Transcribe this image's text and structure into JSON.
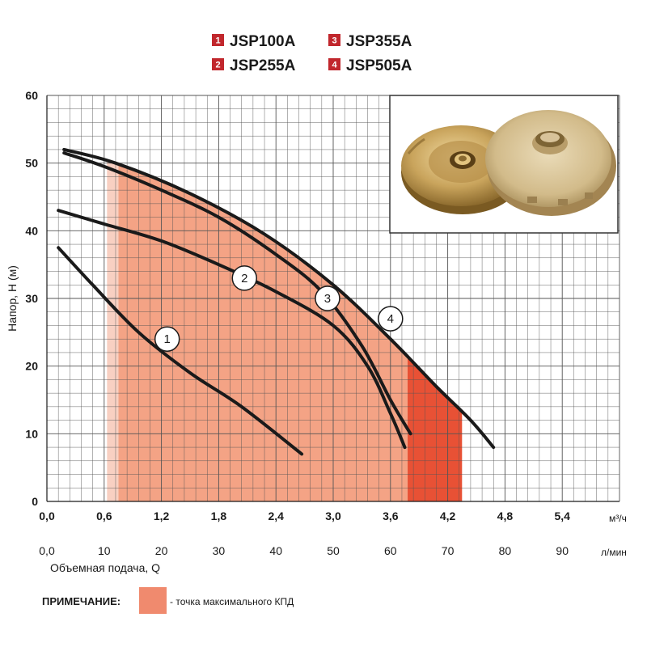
{
  "legend": [
    {
      "num": "1",
      "label": "JSP100A"
    },
    {
      "num": "2",
      "label": "JSP255A"
    },
    {
      "num": "3",
      "label": "JSP355A"
    },
    {
      "num": "4",
      "label": "JSP505A"
    }
  ],
  "colors": {
    "badge": "#c1272d",
    "curve": "#1a1a1a",
    "grid": "#555555",
    "note_swatch": "#f08a6e"
  },
  "chart_data": {
    "type": "line",
    "ylabel": "Напор, H (м)",
    "xlabel": "Объемная подача, Q",
    "x_unit_top": "м³/ч",
    "x_unit_bottom": "л/мин",
    "x_ticks_m3h": [
      "0,0",
      "0,6",
      "1,2",
      "1,8",
      "2,4",
      "3,0",
      "3,6",
      "4,2",
      "4,8",
      "5,4"
    ],
    "x_ticks_lmin": [
      "0,0",
      "10",
      "20",
      "30",
      "40",
      "50",
      "60",
      "70",
      "80",
      "90"
    ],
    "y_ticks": [
      "0",
      "10",
      "20",
      "30",
      "40",
      "50",
      "60"
    ],
    "xlim": [
      0,
      100
    ],
    "ylim": [
      0,
      60
    ],
    "grid": true,
    "series": [
      {
        "num": "1",
        "x": [
          2,
          8,
          16,
          25,
          34,
          44.5
        ],
        "y": [
          37.5,
          32,
          25,
          19,
          14,
          7
        ],
        "marker": {
          "x": 21,
          "y": 24
        }
      },
      {
        "num": "2",
        "x": [
          2,
          10,
          20,
          30,
          40,
          50,
          56,
          60,
          62.5
        ],
        "y": [
          43,
          41,
          38.5,
          35,
          31,
          26,
          20,
          13,
          8
        ],
        "marker": {
          "x": 34.5,
          "y": 33
        }
      },
      {
        "num": "3",
        "x": [
          3,
          10,
          20,
          30,
          40,
          48,
          55,
          60,
          63.5
        ],
        "y": [
          51.5,
          49.5,
          46,
          42,
          36.5,
          31,
          23,
          15,
          10
        ],
        "marker": {
          "x": 49,
          "y": 30
        }
      },
      {
        "num": "4",
        "x": [
          3,
          12,
          25,
          38,
          50,
          60,
          68,
          74,
          78
        ],
        "y": [
          52,
          50,
          45.5,
          39.5,
          32,
          24,
          17,
          12,
          8
        ],
        "marker": {
          "x": 60,
          "y": 27
        }
      }
    ],
    "bands": [
      {
        "x_from": 10.5,
        "x_to": 40.5,
        "color": "#f8d0c2"
      },
      {
        "x_from": 12.5,
        "x_to": 63,
        "color": "#f4a385"
      },
      {
        "x_from": 63,
        "x_to": 72.5,
        "color": "#e85135"
      }
    ]
  },
  "note": {
    "label": "ПРИМЕЧАНИЕ:",
    "text": "- точка максимального КПД"
  }
}
